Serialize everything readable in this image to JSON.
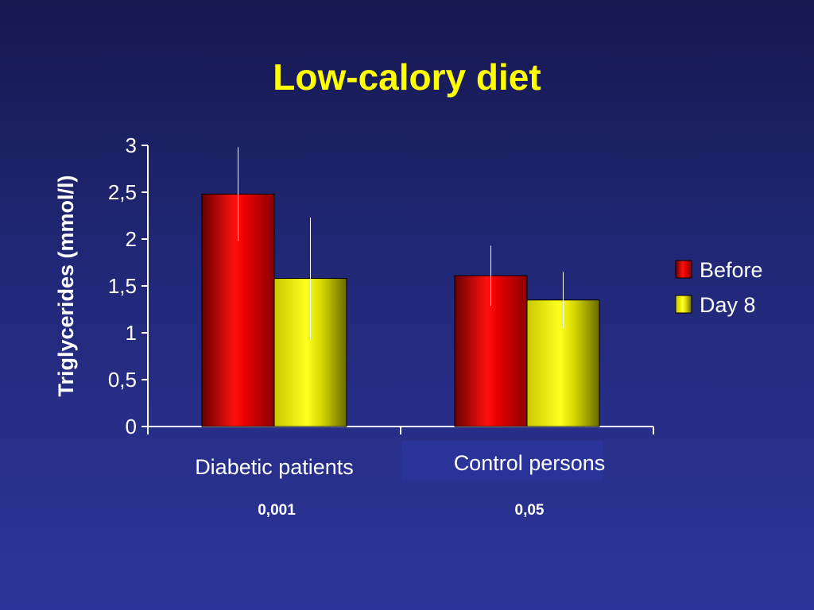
{
  "title": "Low-calory diet",
  "p_values": [
    "0,001",
    "0,05"
  ],
  "colors": {
    "background": "#222878",
    "title": "#ffff00",
    "axis": "#ffffff",
    "before": "#e00000",
    "day8": "#e8e800",
    "category_highlight": "#2a3498"
  },
  "chart_data": {
    "type": "bar",
    "title": "Low-calory diet",
    "ylabel": "Triglycerides (mmol/l)",
    "xlabel": "",
    "categories": [
      "Diabetic patients",
      "Control persons"
    ],
    "ylim": [
      0,
      3
    ],
    "yticks": [
      "0",
      "0,5",
      "1",
      "1,5",
      "2",
      "2,5",
      "3"
    ],
    "series": [
      {
        "name": "Before",
        "values": [
          2.48,
          1.61
        ],
        "error": [
          0.5,
          0.32
        ]
      },
      {
        "name": "Day 8",
        "values": [
          1.58,
          1.35
        ],
        "error": [
          0.65,
          0.3
        ]
      }
    ],
    "legend": "right",
    "grid": false
  }
}
